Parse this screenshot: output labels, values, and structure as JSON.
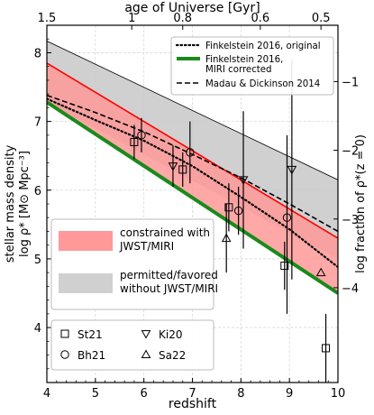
{
  "chart_data": {
    "type": "line",
    "x_axis": {
      "label": "redshift",
      "range": [
        4,
        10
      ],
      "ticks": [
        4,
        5,
        6,
        7,
        8,
        9,
        10
      ]
    },
    "top_axis": {
      "label": "age of Universe [Gyr]",
      "ticks": [
        {
          "label": "1.5",
          "z": 4.0
        },
        {
          "label": "1",
          "z": 5.75
        },
        {
          "label": "0.8",
          "z": 6.8
        },
        {
          "label": "0.6",
          "z": 8.4
        },
        {
          "label": "0.5",
          "z": 9.65
        }
      ]
    },
    "y_axis": {
      "label_line1": "stellar mass density",
      "label_line2": "log ρ* [M⊙ Mpc⁻³]",
      "range": [
        3.2,
        8.4
      ],
      "ticks": [
        4,
        5,
        6,
        7,
        8
      ],
      "grid": true
    },
    "right_axis": {
      "label": "log fraction of ρ*(z = 0)",
      "ticks": [
        {
          "label": "−1",
          "y": 7.58
        },
        {
          "label": "−2",
          "y": 6.58
        },
        {
          "label": "−3",
          "y": 5.58
        },
        {
          "label": "−4",
          "y": 4.58
        }
      ]
    },
    "bands": [
      {
        "name": "permitted/favored without JWST/MIRI",
        "color": "#c8c8c8",
        "edge": "#000000",
        "x": [
          4,
          10
        ],
        "upper": [
          8.17,
          6.15
        ],
        "lower": [
          7.28,
          5.0
        ]
      },
      {
        "name": "constrained with JWST/MIRI",
        "color": "#ff9999",
        "edge": "#ff0000",
        "x": [
          4,
          10
        ],
        "upper": [
          7.85,
          5.3
        ],
        "lower": [
          7.28,
          4.5
        ]
      }
    ],
    "series": [
      {
        "name": "Finkelstein 2016, original",
        "style": "dotted",
        "color": "#000000",
        "x": [
          4,
          5,
          6,
          7,
          8,
          9,
          10
        ],
        "y": [
          7.33,
          7.02,
          6.72,
          6.35,
          5.9,
          5.43,
          4.88
        ]
      },
      {
        "name": "Finkelstein 2016, MIRI corrected",
        "style": "solid",
        "color": "#1a8a1a",
        "x": [
          4,
          10
        ],
        "y": [
          7.28,
          4.5
        ]
      },
      {
        "name": "Madau & Dickinson 2014",
        "style": "dashed",
        "color": "#000000",
        "x": [
          4,
          5,
          6,
          7,
          8,
          9,
          10
        ],
        "y": [
          7.38,
          7.13,
          6.85,
          6.52,
          6.18,
          5.8,
          5.4
        ]
      }
    ],
    "points": [
      {
        "marker": "square",
        "x": 5.8,
        "y": 6.7,
        "yerr": [
          0.25,
          0.25
        ]
      },
      {
        "marker": "square",
        "x": 6.8,
        "y": 6.3,
        "yerr": [
          0.25,
          0.25
        ]
      },
      {
        "marker": "square",
        "x": 7.75,
        "y": 5.75,
        "yerr": [
          0.35,
          0.35
        ]
      },
      {
        "marker": "square",
        "x": 8.9,
        "y": 4.9,
        "yerr": [
          0.35,
          0.35
        ]
      },
      {
        "marker": "square",
        "x": 9.75,
        "y": 3.7,
        "yerr": [
          0.75,
          0.5
        ]
      },
      {
        "marker": "circle",
        "x": 5.95,
        "y": 6.8,
        "yerr": [
          0.25,
          0.25
        ]
      },
      {
        "marker": "circle",
        "x": 6.95,
        "y": 6.55,
        "yerr": [
          0.45,
          0.45
        ]
      },
      {
        "marker": "circle",
        "x": 7.95,
        "y": 5.7,
        "yerr": [
          0.35,
          0.35
        ]
      },
      {
        "marker": "circle",
        "x": 8.95,
        "y": 5.6,
        "yerr": [
          1.4,
          1.2
        ]
      },
      {
        "marker": "triangle_down",
        "x": 6.6,
        "y": 6.35,
        "yerr": [
          0.3,
          0.3
        ]
      },
      {
        "marker": "triangle_down",
        "x": 8.05,
        "y": 6.15,
        "yerr": [
          1.0,
          1.0
        ]
      },
      {
        "marker": "triangle_down",
        "x": 9.05,
        "y": 6.3,
        "yerr": [
          1.6,
          1.6
        ]
      },
      {
        "marker": "triangle_up",
        "x": 7.7,
        "y": 5.3,
        "yerr": [
          0.5,
          0.5
        ]
      },
      {
        "marker": "triangle_up",
        "x": 9.65,
        "y": 4.8,
        "yerr": [
          0.0,
          0.0
        ]
      }
    ],
    "legend_top": [
      {
        "label": "Finkelstein 2016, original",
        "style": "dotted"
      },
      {
        "label": "Finkelstein 2016,\nMIRI corrected",
        "style": "green"
      },
      {
        "label": "Madau & Dickinson 2014",
        "style": "dashed"
      }
    ],
    "legend_bands": [
      {
        "label": "constrained with\nJWST/MIRI",
        "color": "#ff9999"
      },
      {
        "label": "permitted/favored\nwithout JWST/MIRI",
        "color": "#d0d0d0"
      }
    ],
    "legend_markers": [
      {
        "label": "St21",
        "marker": "square"
      },
      {
        "label": "Ki20",
        "marker": "triangle_down"
      },
      {
        "label": "Bh21",
        "marker": "circle"
      },
      {
        "label": "Sa22",
        "marker": "triangle_up"
      }
    ]
  }
}
